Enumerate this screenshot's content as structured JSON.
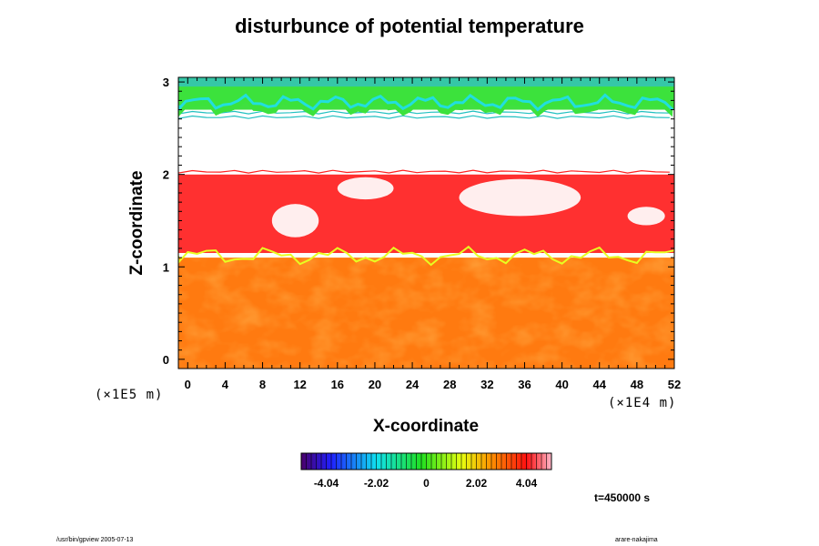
{
  "chart_data": {
    "type": "heatmap",
    "title": "disturbunce of potential temperature",
    "xlabel": "X-coordinate",
    "ylabel": "Z-coordinate",
    "x_unit": "(×1E4 m)",
    "z_unit": "(×1E5 m)",
    "xlim": [
      -1,
      52
    ],
    "ylim": [
      -0.1,
      3.05
    ],
    "x_ticks": [
      "0",
      "4",
      "8",
      "12",
      "16",
      "20",
      "24",
      "28",
      "32",
      "36",
      "40",
      "44",
      "48",
      "52"
    ],
    "y_ticks": [
      "0",
      "1",
      "2",
      "3"
    ],
    "colorbar": {
      "range": [
        -5.05,
        5.05
      ],
      "tick_labels": [
        "-4.04",
        "-2.02",
        "0",
        "2.02",
        "4.04"
      ],
      "colormap": "rainbow (purple-blue-cyan-green-yellow-orange-red-pink)"
    },
    "layers": [
      {
        "z_range": [
          -0.1,
          1.1
        ],
        "value": 3.2,
        "color": "#ff7a10"
      },
      {
        "z_range": [
          1.15,
          2.0
        ],
        "value": 4.0,
        "color": "#ff3030"
      },
      {
        "z_range": [
          2.0,
          2.6
        ],
        "value": null,
        "color": "#ffffff"
      },
      {
        "z_range": [
          2.7,
          3.05
        ],
        "value": 0.5,
        "color": "#40e040"
      }
    ],
    "time_label": "t=450000 s"
  },
  "footer": {
    "left": "/usr/bin/gpview 2005-07-13",
    "right": "arare-nakajima"
  },
  "colors": {
    "lower_layer": "#ff7a10",
    "middle_layer": "#ff3232",
    "upper_green": "#3ce23c",
    "cyan": "#22dede",
    "yellow": "#e8ff20"
  }
}
